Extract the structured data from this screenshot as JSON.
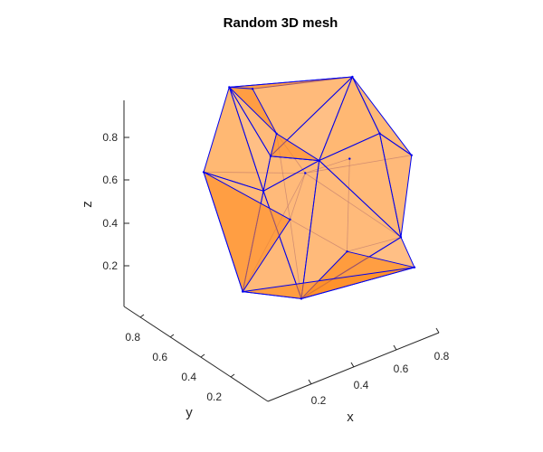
{
  "chart_data": {
    "type": "mesh",
    "title": "Random 3D mesh",
    "xlabel": "x",
    "ylabel": "y",
    "zlabel": "z",
    "xticks": [
      "0.2",
      "0.4",
      "0.6",
      "0.8"
    ],
    "yticks": [
      "0.2",
      "0.4",
      "0.6",
      "0.8"
    ],
    "zticks": [
      "0.2",
      "0.4",
      "0.6",
      "0.8"
    ],
    "face_color": "#ff7f0e",
    "face_alpha": 0.6,
    "edge_color": "#0000ee",
    "vertices": [
      {
        "x": 0.41,
        "y": 0.84,
        "z": 0.92
      },
      {
        "x": 0.47,
        "y": 0.77,
        "z": 0.92
      },
      {
        "x": 0.86,
        "y": 0.66,
        "z": 0.87
      },
      {
        "x": 0.29,
        "y": 0.84,
        "z": 0.57
      },
      {
        "x": 0.38,
        "y": 0.57,
        "z": 0.57
      },
      {
        "x": 0.62,
        "y": 0.54,
        "z": 0.63
      },
      {
        "x": 0.84,
        "y": 0.45,
        "z": 0.71
      },
      {
        "x": 0.94,
        "y": 0.38,
        "z": 0.6
      },
      {
        "x": 0.29,
        "y": 0.58,
        "z": 0.13
      },
      {
        "x": 0.41,
        "y": 0.36,
        "z": 0.15
      },
      {
        "x": 0.82,
        "y": 0.28,
        "z": 0.31
      },
      {
        "x": 0.82,
        "y": 0.19,
        "z": 0.21
      },
      {
        "x": 0.59,
        "y": 0.59,
        "z": 0.56
      },
      {
        "x": 0.35,
        "y": 0.35,
        "z": 0.55
      },
      {
        "x": 0.47,
        "y": 0.65,
        "z": 0.66
      },
      {
        "x": 0.61,
        "y": 0.34,
        "z": 0.3
      },
      {
        "x": 0.65,
        "y": 0.38,
        "z": 0.7
      },
      {
        "x": 0.54,
        "y": 0.71,
        "z": 0.71
      }
    ]
  }
}
